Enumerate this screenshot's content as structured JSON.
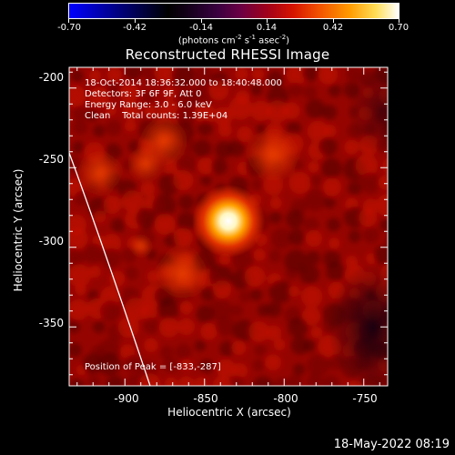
{
  "colorbar": {
    "tick_labels": [
      "-0.70",
      "-0.42",
      "-0.14",
      "0.14",
      "0.42",
      "0.70"
    ],
    "units": {
      "prefix": "(photons cm",
      "exp1": "-2",
      "mid1": " s",
      "exp2": "-1",
      "mid2": " asec",
      "exp3": "-2",
      "suffix": ")"
    },
    "range": [
      -0.7,
      0.7
    ],
    "colors": {
      "low": "#0000ff",
      "zero": "#000000",
      "mid": "#c80000",
      "high": "#ffffff"
    }
  },
  "plot": {
    "title": "Reconstructed RHESSI Image",
    "info_lines": [
      "18-Oct-2014 18:36:32.000 to 18:40:48.000",
      "Detectors: 3F 6F 9F, Att 0",
      "Energy Range: 3.0 - 6.0 keV",
      "Clean    Total counts: 1.39E+04"
    ],
    "peak_text": "Position of Peak = [-833,-287]",
    "peak_position": [
      -833,
      -287
    ],
    "x_axis": {
      "label": "Heliocentric X (arcsec)",
      "ticks": [
        "-900",
        "-850",
        "-800",
        "-750"
      ],
      "range": [
        -935,
        -735
      ]
    },
    "y_axis": {
      "label": "Heliocentric Y (arcsec)",
      "ticks": [
        "-200",
        "-250",
        "-300",
        "-350"
      ],
      "range": [
        -387,
        -187
      ]
    },
    "limb_color": "#ffffff",
    "image_colors": {
      "background": "#8a0000",
      "bright": "#e02a00",
      "core": "#ffffff"
    }
  },
  "footer": {
    "date_stamp": "18-May-2022 08:19"
  }
}
